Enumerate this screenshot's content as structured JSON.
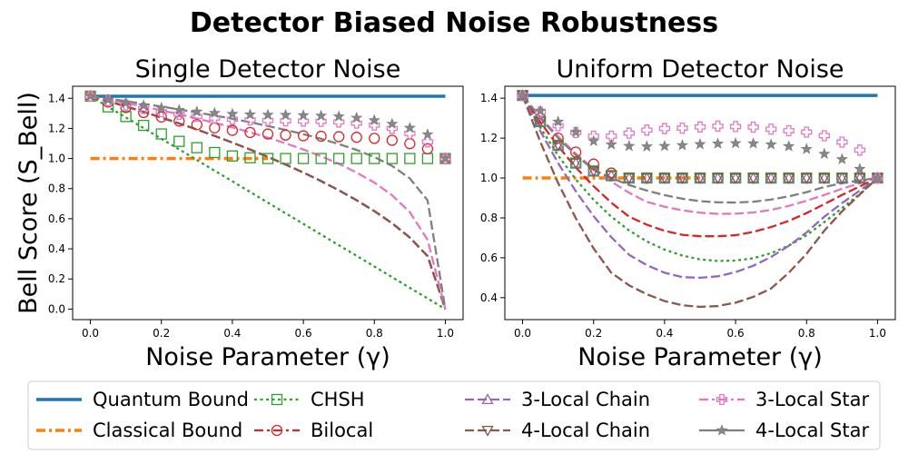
{
  "figure_title": "Detector Biased Noise Robustness",
  "colors": {
    "quantum": "#1f77b4",
    "classical": "#ff7f0e",
    "chsh": "#2ca02c",
    "bilocal": "#d62728",
    "chain3": "#9467bd",
    "chain4": "#8c564b",
    "star3": "#e377c2",
    "star4": "#7f7f7f"
  },
  "legend": {
    "placement": "bottom-center",
    "columns": 4,
    "entries": [
      {
        "key": "quantum",
        "label": "Quantum Bound",
        "line": "solid",
        "marker": "none"
      },
      {
        "key": "classical",
        "label": "Classical Bound",
        "line": "dashdot",
        "marker": "none"
      },
      {
        "key": "chsh",
        "label": "CHSH",
        "line": "dotted",
        "marker": "square"
      },
      {
        "key": "bilocal",
        "label": "Bilocal",
        "line": "dashdot",
        "marker": "circle"
      },
      {
        "key": "chain3",
        "label": "3-Local Chain",
        "line": "dashed",
        "marker": "triangle-up"
      },
      {
        "key": "chain4",
        "label": "4-Local Chain",
        "line": "dashed",
        "marker": "triangle-down"
      },
      {
        "key": "star3",
        "label": "3-Local Star",
        "line": "dashdot",
        "marker": "plus"
      },
      {
        "key": "star4",
        "label": "4-Local Star",
        "line": "solid",
        "marker": "star"
      }
    ]
  },
  "chart_data": [
    {
      "type": "line",
      "title": "Single Detector Noise",
      "xlabel": "Noise Parameter (γ)",
      "ylabel": "Bell Score (S_Bell)",
      "xlim": [
        -0.05,
        1.05
      ],
      "ylim": [
        -0.07,
        1.48
      ],
      "xticks": [
        0.0,
        0.2,
        0.4,
        0.6,
        0.8,
        1.0
      ],
      "xtick_labels": [
        "0.0",
        "0.2",
        "0.4",
        "0.6",
        "0.8",
        "1.0"
      ],
      "yticks": [
        0.0,
        0.2,
        0.4,
        0.6,
        0.8,
        1.0,
        1.2,
        1.4
      ],
      "ytick_labels": [
        "0.0",
        "0.2",
        "0.4",
        "0.6",
        "0.8",
        "1.0",
        "1.2",
        "1.4"
      ],
      "grid": false,
      "x": [
        0,
        0.05,
        0.1,
        0.15,
        0.2,
        0.25,
        0.3,
        0.35,
        0.4,
        0.45,
        0.5,
        0.55,
        0.6,
        0.65,
        0.7,
        0.75,
        0.8,
        0.85,
        0.9,
        0.95,
        1.0
      ],
      "series": [
        {
          "key": "quantum",
          "name": "Quantum Bound",
          "kind": "line",
          "values": [
            1.414,
            1.414,
            1.414,
            1.414,
            1.414,
            1.414,
            1.414,
            1.414,
            1.414,
            1.414,
            1.414,
            1.414,
            1.414,
            1.414,
            1.414,
            1.414,
            1.414,
            1.414,
            1.414,
            1.414,
            1.414
          ]
        },
        {
          "key": "classical",
          "name": "Classical Bound",
          "kind": "line",
          "x": [
            0,
            0.5
          ],
          "values": [
            1.0,
            1.0
          ]
        },
        {
          "key": "chsh",
          "name": "CHSH",
          "kind": "line",
          "values": [
            1.414,
            1.343,
            1.273,
            1.202,
            1.131,
            1.061,
            0.99,
            0.919,
            0.849,
            0.778,
            0.707,
            0.636,
            0.566,
            0.495,
            0.424,
            0.354,
            0.283,
            0.212,
            0.141,
            0.071,
            0.0
          ]
        },
        {
          "key": "bilocal",
          "name": "Bilocal",
          "kind": "line",
          "values": [
            1.414,
            1.381,
            1.346,
            1.31,
            1.272,
            1.233,
            1.193,
            1.15,
            1.106,
            1.06,
            1.011,
            0.96,
            0.907,
            0.85,
            0.789,
            0.723,
            0.651,
            0.57,
            0.475,
            0.352,
            0.0
          ]
        },
        {
          "key": "chain3",
          "name": "3-Local Chain",
          "kind": "line",
          "values": [
            1.414,
            1.381,
            1.346,
            1.31,
            1.272,
            1.233,
            1.193,
            1.15,
            1.106,
            1.06,
            1.011,
            0.96,
            0.907,
            0.85,
            0.789,
            0.723,
            0.651,
            0.57,
            0.475,
            0.352,
            0.0
          ]
        },
        {
          "key": "chain4",
          "name": "4-Local Chain",
          "kind": "line",
          "values": [
            1.414,
            1.381,
            1.346,
            1.31,
            1.272,
            1.233,
            1.193,
            1.15,
            1.106,
            1.06,
            1.011,
            0.96,
            0.907,
            0.85,
            0.789,
            0.723,
            0.651,
            0.57,
            0.475,
            0.352,
            0.0
          ]
        },
        {
          "key": "star3",
          "name": "3-Local Star",
          "kind": "line",
          "values": [
            1.414,
            1.392,
            1.369,
            1.345,
            1.32,
            1.294,
            1.266,
            1.237,
            1.207,
            1.174,
            1.139,
            1.101,
            1.06,
            1.015,
            0.965,
            0.907,
            0.84,
            0.756,
            0.644,
            0.46,
            0.0
          ]
        },
        {
          "key": "star4",
          "name": "4-Local Star",
          "kind": "line",
          "values": [
            1.414,
            1.398,
            1.381,
            1.363,
            1.345,
            1.326,
            1.306,
            1.286,
            1.264,
            1.241,
            1.216,
            1.19,
            1.162,
            1.131,
            1.096,
            1.057,
            1.01,
            0.951,
            0.868,
            0.722,
            0.0
          ]
        },
        {
          "key": "chsh",
          "name": "CHSH",
          "kind": "markers",
          "values": [
            1.414,
            1.343,
            1.279,
            1.22,
            1.163,
            1.114,
            1.072,
            1.04,
            1.017,
            1.005,
            1.0,
            1.0,
            1.0,
            1.0,
            1.0,
            1.0,
            1.0,
            1.0,
            1.0,
            1.0,
            1.0
          ]
        },
        {
          "key": "bilocal",
          "name": "Bilocal",
          "kind": "markers",
          "values": [
            1.414,
            1.375,
            1.339,
            1.306,
            1.276,
            1.249,
            1.225,
            1.204,
            1.187,
            1.173,
            1.163,
            1.156,
            1.151,
            1.148,
            1.145,
            1.141,
            1.134,
            1.121,
            1.099,
            1.065,
            1.0
          ]
        },
        {
          "key": "star3",
          "name": "3-Local Star",
          "kind": "markers",
          "values": [
            1.414,
            1.383,
            1.356,
            1.332,
            1.311,
            1.294,
            1.28,
            1.269,
            1.261,
            1.256,
            1.253,
            1.251,
            1.249,
            1.247,
            1.243,
            1.235,
            1.222,
            1.2,
            1.167,
            1.111,
            1.0
          ]
        },
        {
          "key": "star4",
          "name": "4-Local Star",
          "kind": "markers",
          "values": [
            1.414,
            1.391,
            1.37,
            1.352,
            1.336,
            1.322,
            1.311,
            1.302,
            1.296,
            1.292,
            1.29,
            1.289,
            1.287,
            1.284,
            1.279,
            1.27,
            1.254,
            1.23,
            1.203,
            1.16,
            1.0
          ]
        }
      ]
    },
    {
      "type": "line",
      "title": "Uniform Detector Noise",
      "xlabel": "Noise Parameter (γ)",
      "ylabel": "",
      "xlim": [
        -0.05,
        1.05
      ],
      "ylim": [
        0.29,
        1.46
      ],
      "xticks": [
        0.0,
        0.2,
        0.4,
        0.6,
        0.8,
        1.0
      ],
      "xtick_labels": [
        "0.0",
        "0.2",
        "0.4",
        "0.6",
        "0.8",
        "1.0"
      ],
      "yticks": [
        0.4,
        0.6,
        0.8,
        1.0,
        1.2,
        1.4
      ],
      "ytick_labels": [
        "0.4",
        "0.6",
        "0.8",
        "1.0",
        "1.2",
        "1.4"
      ],
      "grid": false,
      "x": [
        0,
        0.05,
        0.1,
        0.15,
        0.2,
        0.25,
        0.3,
        0.35,
        0.4,
        0.45,
        0.5,
        0.55,
        0.6,
        0.65,
        0.7,
        0.75,
        0.8,
        0.85,
        0.9,
        0.95,
        1.0
      ],
      "series": [
        {
          "key": "quantum",
          "name": "Quantum Bound",
          "kind": "line",
          "values": [
            1.414,
            1.414,
            1.414,
            1.414,
            1.414,
            1.414,
            1.414,
            1.414,
            1.414,
            1.414,
            1.414,
            1.414,
            1.414,
            1.414,
            1.414,
            1.414,
            1.414,
            1.414,
            1.414,
            1.414,
            1.414
          ]
        },
        {
          "key": "classical",
          "name": "Classical Bound",
          "kind": "line",
          "x": [
            0,
            0.5
          ],
          "values": [
            1.0,
            1.0
          ]
        },
        {
          "key": "chsh",
          "name": "CHSH",
          "kind": "line",
          "values": [
            1.414,
            1.253,
            1.113,
            0.993,
            0.891,
            0.806,
            0.737,
            0.682,
            0.641,
            0.611,
            0.592,
            0.584,
            0.586,
            0.598,
            0.623,
            0.661,
            0.713,
            0.779,
            0.849,
            0.92,
            1.0
          ]
        },
        {
          "key": "bilocal",
          "name": "Bilocal",
          "kind": "line",
          "values": [
            1.414,
            1.28,
            1.16,
            1.053,
            0.959,
            0.876,
            0.806,
            0.766,
            0.735,
            0.715,
            0.708,
            0.708,
            0.713,
            0.73,
            0.754,
            0.785,
            0.824,
            0.869,
            0.915,
            0.958,
            1.0
          ]
        },
        {
          "key": "chain3",
          "name": "3-Local Chain",
          "kind": "line",
          "values": [
            1.414,
            1.235,
            1.075,
            0.933,
            0.809,
            0.703,
            0.615,
            0.563,
            0.525,
            0.503,
            0.5,
            0.507,
            0.528,
            0.56,
            0.604,
            0.66,
            0.727,
            0.806,
            0.874,
            0.937,
            1.0
          ]
        },
        {
          "key": "chain4",
          "name": "4-Local Chain",
          "kind": "line",
          "values": [
            1.414,
            1.181,
            0.975,
            0.798,
            0.647,
            0.525,
            0.462,
            0.417,
            0.383,
            0.362,
            0.354,
            0.358,
            0.375,
            0.404,
            0.446,
            0.525,
            0.62,
            0.736,
            0.833,
            0.917,
            1.0
          ]
        },
        {
          "key": "star3",
          "name": "3-Local Star",
          "kind": "line",
          "values": [
            1.414,
            1.305,
            1.208,
            1.122,
            1.047,
            0.982,
            0.926,
            0.88,
            0.856,
            0.838,
            0.826,
            0.82,
            0.821,
            0.827,
            0.84,
            0.86,
            0.886,
            0.915,
            0.946,
            0.974,
            1.0
          ]
        },
        {
          "key": "star4",
          "name": "4-Local Star",
          "kind": "line",
          "values": [
            1.414,
            1.301,
            1.201,
            1.115,
            1.041,
            1.0,
            0.965,
            0.937,
            0.914,
            0.896,
            0.884,
            0.878,
            0.877,
            0.881,
            0.892,
            0.908,
            0.929,
            0.955,
            0.974,
            0.988,
            1.0
          ]
        },
        {
          "key": "bilocal",
          "name": "Bilocal",
          "kind": "markers",
          "values": [
            1.414,
            1.3,
            1.2,
            1.13,
            1.07,
            1.025,
            1.0,
            1.0,
            1.0,
            1.0,
            1.0,
            1.0,
            1.0,
            1.0,
            1.0,
            1.0,
            1.0,
            1.0,
            1.0,
            1.0,
            1.0
          ]
        },
        {
          "key": "chsh",
          "name": "CHSH",
          "kind": "markers",
          "values": [
            1.414,
            1.283,
            1.164,
            1.075,
            1.035,
            1.012,
            1.0,
            1.0,
            1.0,
            1.0,
            1.0,
            1.0,
            1.0,
            1.0,
            1.0,
            1.0,
            1.0,
            1.0,
            1.0,
            1.0,
            1.0
          ]
        },
        {
          "key": "chain3",
          "name": "3-Local Chain",
          "kind": "markers",
          "values": [
            1.414,
            1.283,
            1.164,
            1.075,
            1.035,
            1.012,
            1.0,
            1.0,
            1.0,
            1.0,
            1.0,
            1.0,
            1.0,
            1.0,
            1.0,
            1.0,
            1.0,
            1.0,
            1.0,
            1.0,
            1.0
          ]
        },
        {
          "key": "chain4",
          "name": "4-Local Chain",
          "kind": "markers",
          "values": [
            1.414,
            1.283,
            1.164,
            1.075,
            1.035,
            1.012,
            1.0,
            1.0,
            1.0,
            1.0,
            1.0,
            1.0,
            1.0,
            1.0,
            1.0,
            1.0,
            1.0,
            1.0,
            1.0,
            1.0,
            1.0
          ]
        },
        {
          "key": "star3",
          "name": "3-Local Star",
          "kind": "markers",
          "values": [
            1.414,
            1.33,
            1.262,
            1.228,
            1.21,
            1.21,
            1.225,
            1.24,
            1.248,
            1.25,
            1.256,
            1.26,
            1.258,
            1.255,
            1.245,
            1.237,
            1.23,
            1.212,
            1.18,
            1.14,
            1.0
          ]
        },
        {
          "key": "star4",
          "name": "4-Local Star",
          "kind": "markers",
          "values": [
            1.414,
            1.337,
            1.282,
            1.23,
            1.185,
            1.168,
            1.16,
            1.158,
            1.16,
            1.164,
            1.169,
            1.172,
            1.174,
            1.173,
            1.168,
            1.159,
            1.145,
            1.121,
            1.094,
            1.045,
            1.0
          ]
        }
      ]
    }
  ]
}
